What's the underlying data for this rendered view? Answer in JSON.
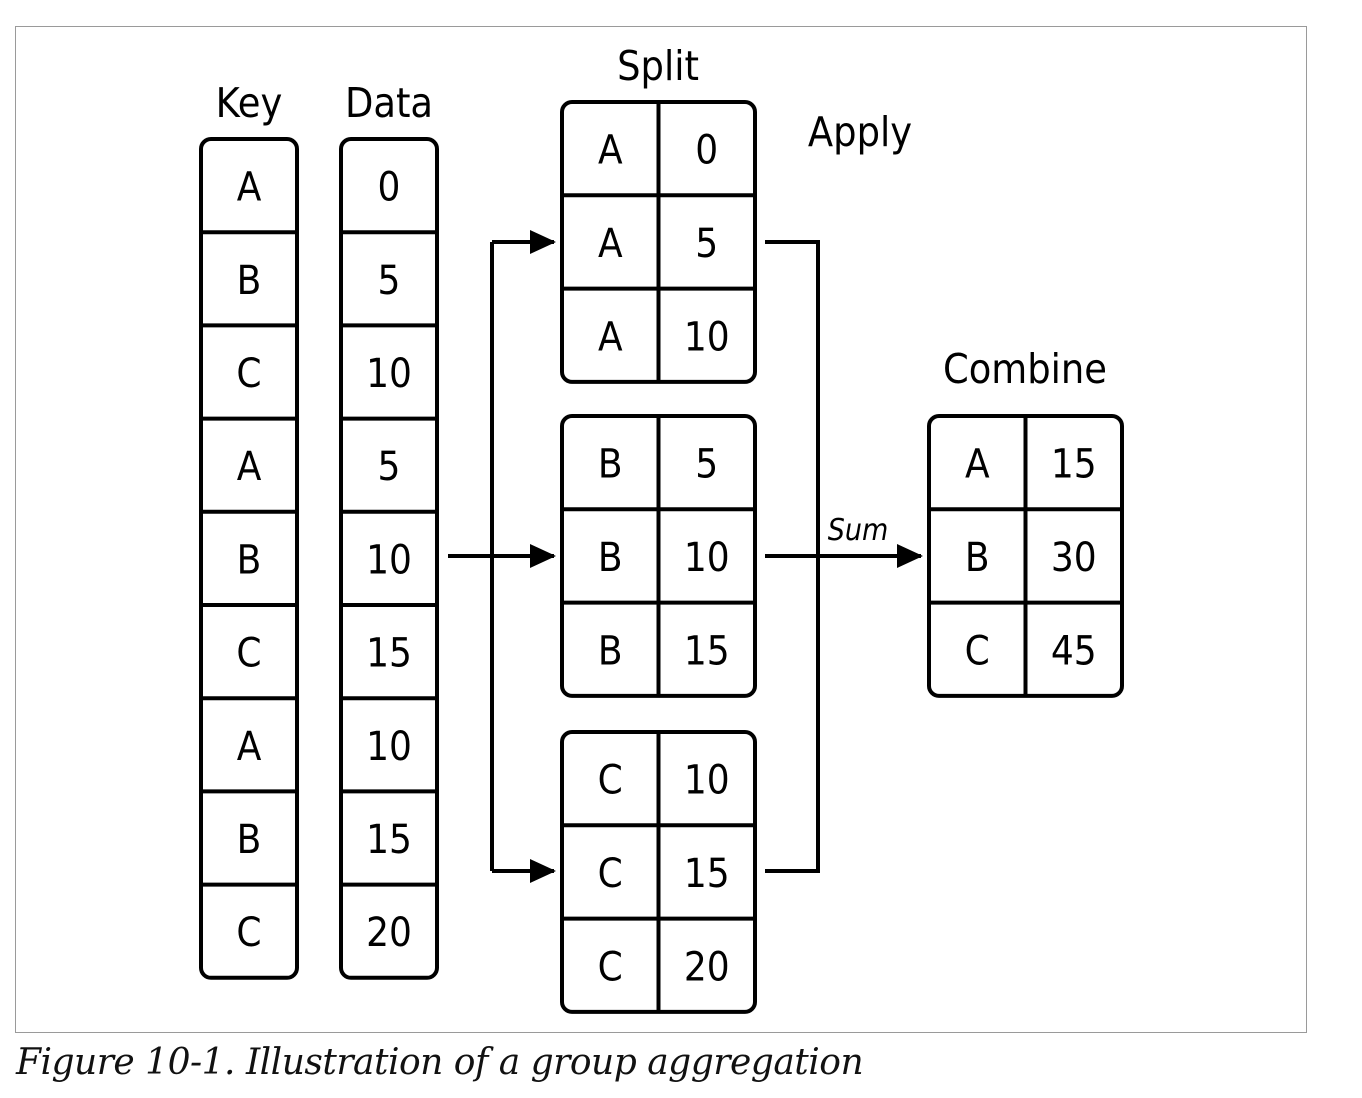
{
  "headings": {
    "key": "Key",
    "data": "Data",
    "split": "Split",
    "apply": "Apply",
    "combine": "Combine"
  },
  "operation": "Sum",
  "key_column": [
    "A",
    "B",
    "C",
    "A",
    "B",
    "C",
    "A",
    "B",
    "C"
  ],
  "data_column": [
    "0",
    "5",
    "10",
    "5",
    "10",
    "15",
    "10",
    "15",
    "20"
  ],
  "split_groups": [
    {
      "rows": [
        [
          "A",
          "0"
        ],
        [
          "A",
          "5"
        ],
        [
          "A",
          "10"
        ]
      ]
    },
    {
      "rows": [
        [
          "B",
          "5"
        ],
        [
          "B",
          "10"
        ],
        [
          "B",
          "15"
        ]
      ]
    },
    {
      "rows": [
        [
          "C",
          "10"
        ],
        [
          "C",
          "15"
        ],
        [
          "C",
          "20"
        ]
      ]
    }
  ],
  "combine_rows": [
    [
      "A",
      "15"
    ],
    [
      "B",
      "30"
    ],
    [
      "C",
      "45"
    ]
  ],
  "caption": "Figure 10-1. Illustration of a group aggregation"
}
